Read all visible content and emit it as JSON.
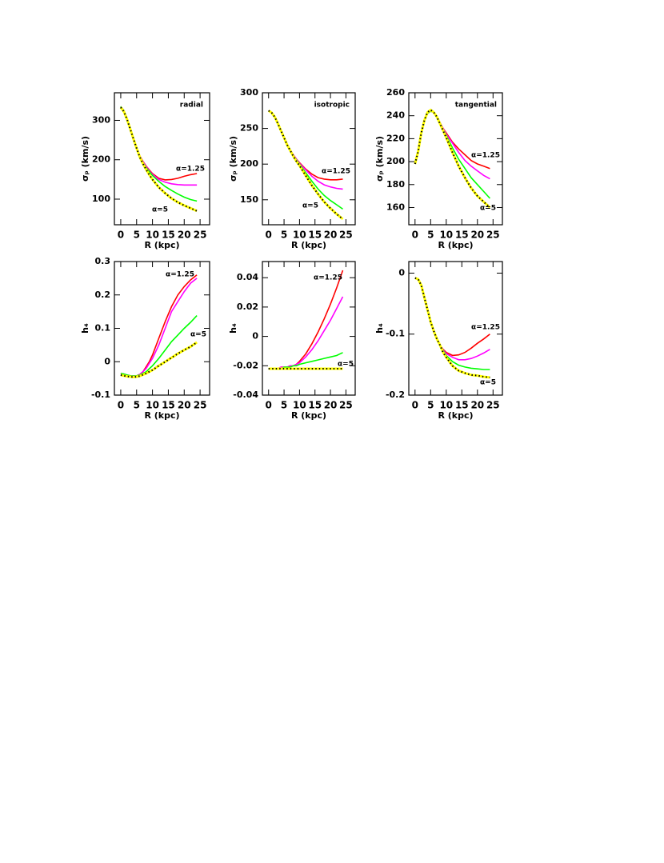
{
  "chart_data": [
    {
      "type": "line",
      "xlabel": "R (kpc)",
      "ylabel": "σₚ (km/s)",
      "annotations": [
        "radial",
        "α=1.25",
        "α=5"
      ],
      "x": [
        0,
        1,
        2,
        3,
        4,
        5,
        6,
        7,
        8,
        9,
        10,
        12,
        14,
        16,
        18,
        20,
        22,
        24
      ],
      "xlim": [
        -2,
        28
      ],
      "xticks": [
        0,
        5,
        10,
        15,
        20,
        25
      ],
      "ylim": [
        35,
        370
      ],
      "yticks": [
        100,
        200,
        300
      ],
      "series": [
        {
          "color": "#ff0000",
          "values": [
            335,
            325,
            305,
            280,
            255,
            230,
            210,
            196,
            184,
            174,
            165,
            153,
            149,
            150,
            153,
            158,
            162,
            165
          ]
        },
        {
          "color": "#ff00ff",
          "values": [
            335,
            325,
            305,
            280,
            255,
            230,
            210,
            195,
            183,
            172,
            163,
            150,
            143,
            139,
            137,
            136,
            136,
            136
          ]
        },
        {
          "color": "#00ff00",
          "values": [
            335,
            325,
            305,
            280,
            255,
            230,
            209,
            193,
            180,
            170,
            160,
            145,
            132,
            122,
            113,
            105,
            99,
            95
          ]
        },
        {
          "color": "#ffff00",
          "dot_color": "#000000",
          "values": [
            333,
            322,
            302,
            278,
            253,
            229,
            207,
            190,
            175,
            162,
            150,
            130,
            115,
            102,
            92,
            84,
            77,
            70
          ]
        }
      ]
    },
    {
      "type": "line",
      "xlabel": "R (kpc)",
      "ylabel": "σₚ (km/s)",
      "annotations": [
        "isotropic",
        "α=1.25",
        "α=5"
      ],
      "x": [
        0,
        1,
        2,
        3,
        4,
        5,
        6,
        7,
        8,
        9,
        10,
        12,
        14,
        16,
        18,
        20,
        22,
        24
      ],
      "xlim": [
        -2,
        28
      ],
      "xticks": [
        0,
        5,
        10,
        15,
        20,
        25
      ],
      "ylim": [
        115,
        300
      ],
      "yticks": [
        150,
        200,
        250,
        300
      ],
      "series": [
        {
          "color": "#ff0000",
          "values": [
            275,
            272,
            266,
            257,
            247,
            237,
            228,
            220,
            213,
            207,
            202,
            193,
            186,
            181,
            179,
            178,
            178,
            179
          ]
        },
        {
          "color": "#ff00ff",
          "values": [
            275,
            272,
            266,
            257,
            247,
            237,
            228,
            220,
            213,
            207,
            201,
            192,
            183,
            176,
            171,
            168,
            166,
            165
          ]
        },
        {
          "color": "#00ff00",
          "values": [
            275,
            272,
            266,
            257,
            247,
            237,
            228,
            220,
            212,
            206,
            200,
            188,
            176,
            165,
            156,
            149,
            143,
            137
          ]
        },
        {
          "color": "#ffff00",
          "dot_color": "#000000",
          "values": [
            275,
            272,
            266,
            257,
            247,
            237,
            227,
            219,
            211,
            204,
            198,
            184,
            170,
            158,
            147,
            138,
            130,
            123
          ]
        }
      ]
    },
    {
      "type": "line",
      "xlabel": "R (kpc)",
      "ylabel": "σₚ (km/s)",
      "annotations": [
        "tangential",
        "α=1.25",
        "α=5"
      ],
      "x": [
        0,
        1,
        2,
        3,
        4,
        5,
        6,
        7,
        8,
        9,
        10,
        12,
        14,
        16,
        18,
        20,
        22,
        24
      ],
      "xlim": [
        -2,
        28
      ],
      "xticks": [
        0,
        5,
        10,
        15,
        20,
        25
      ],
      "ylim": [
        145,
        260
      ],
      "yticks": [
        160,
        180,
        200,
        220,
        240,
        260
      ],
      "series": [
        {
          "color": "#ff0000",
          "values": [
            200,
            210,
            225,
            236,
            242,
            244,
            243,
            239,
            234,
            229,
            225,
            217,
            211,
            206,
            201,
            198,
            196,
            194
          ]
        },
        {
          "color": "#ff00ff",
          "values": [
            200,
            210,
            225,
            236,
            242,
            244,
            243,
            239,
            234,
            229,
            224,
            216,
            208,
            201,
            196,
            192,
            188,
            185
          ]
        },
        {
          "color": "#00ff00",
          "values": [
            200,
            210,
            225,
            236,
            242,
            244,
            243,
            239,
            234,
            228,
            223,
            212,
            202,
            194,
            186,
            180,
            174,
            168
          ]
        },
        {
          "color": "#ffff00",
          "dot_color": "#000000",
          "values": [
            198,
            209,
            225,
            236,
            243,
            245,
            243,
            239,
            233,
            227,
            221,
            208,
            196,
            186,
            177,
            170,
            165,
            160
          ]
        }
      ]
    },
    {
      "type": "line",
      "xlabel": "R (kpc)",
      "ylabel": "h₄",
      "annotations": [
        "α=1.25",
        "α=5"
      ],
      "x": [
        0,
        1,
        2,
        3,
        4,
        5,
        6,
        7,
        8,
        9,
        10,
        12,
        14,
        16,
        18,
        20,
        22,
        24
      ],
      "xlim": [
        -2,
        28
      ],
      "xticks": [
        0,
        5,
        10,
        15,
        20,
        25
      ],
      "ylim": [
        -0.1,
        0.3
      ],
      "yticks": [
        -0.1,
        0,
        0.1,
        0.2,
        0.3
      ],
      "series": [
        {
          "color": "#ff0000",
          "values": [
            -0.035,
            -0.037,
            -0.04,
            -0.042,
            -0.043,
            -0.042,
            -0.038,
            -0.03,
            -0.015,
            0,
            0.02,
            0.07,
            0.12,
            0.165,
            0.2,
            0.225,
            0.245,
            0.26
          ]
        },
        {
          "color": "#ff00ff",
          "values": [
            -0.035,
            -0.037,
            -0.04,
            -0.042,
            -0.043,
            -0.042,
            -0.038,
            -0.03,
            -0.02,
            -0.005,
            0.01,
            0.05,
            0.1,
            0.15,
            0.18,
            0.21,
            0.235,
            0.25
          ]
        },
        {
          "color": "#00ff00",
          "values": [
            -0.035,
            -0.037,
            -0.04,
            -0.042,
            -0.043,
            -0.042,
            -0.04,
            -0.035,
            -0.03,
            -0.021,
            -0.012,
            0.01,
            0.035,
            0.06,
            0.08,
            0.1,
            0.118,
            0.138
          ]
        },
        {
          "color": "#ffff00",
          "dot_color": "#000000",
          "values": [
            -0.04,
            -0.042,
            -0.044,
            -0.045,
            -0.046,
            -0.045,
            -0.043,
            -0.039,
            -0.035,
            -0.03,
            -0.025,
            -0.012,
            0,
            0.012,
            0.024,
            0.035,
            0.045,
            0.058
          ]
        }
      ]
    },
    {
      "type": "line",
      "xlabel": "R (kpc)",
      "ylabel": "h₄",
      "annotations": [
        "α=1.25",
        "α=5"
      ],
      "x": [
        0,
        1,
        2,
        3,
        4,
        5,
        6,
        7,
        8,
        9,
        10,
        12,
        14,
        16,
        18,
        20,
        22,
        24
      ],
      "xlim": [
        -2,
        28
      ],
      "xticks": [
        0,
        5,
        10,
        15,
        20,
        25
      ],
      "ylim": [
        -0.04,
        0.051
      ],
      "yticks": [
        -0.04,
        -0.02,
        0,
        0.02,
        0.04
      ],
      "series": [
        {
          "color": "#ff0000",
          "values": [
            -0.022,
            -0.022,
            -0.022,
            -0.022,
            -0.021,
            -0.021,
            -0.021,
            -0.02,
            -0.02,
            -0.019,
            -0.017,
            -0.012,
            -0.005,
            0.003,
            0.012,
            0.022,
            0.033,
            0.045
          ]
        },
        {
          "color": "#ff00ff",
          "values": [
            -0.022,
            -0.022,
            -0.022,
            -0.022,
            -0.021,
            -0.021,
            -0.021,
            -0.02,
            -0.02,
            -0.019,
            -0.018,
            -0.014,
            -0.009,
            -0.003,
            0.004,
            0.011,
            0.019,
            0.027
          ]
        },
        {
          "color": "#00ff00",
          "values": [
            -0.022,
            -0.022,
            -0.022,
            -0.022,
            -0.022,
            -0.021,
            -0.021,
            -0.021,
            -0.02,
            -0.02,
            -0.019,
            -0.018,
            -0.017,
            -0.016,
            -0.015,
            -0.014,
            -0.013,
            -0.011
          ]
        },
        {
          "color": "#ffff00",
          "dot_color": "#000000",
          "values": [
            -0.022,
            -0.022,
            -0.022,
            -0.022,
            -0.022,
            -0.022,
            -0.022,
            -0.022,
            -0.022,
            -0.022,
            -0.022,
            -0.022,
            -0.022,
            -0.022,
            -0.022,
            -0.022,
            -0.022,
            -0.022
          ]
        }
      ]
    },
    {
      "type": "line",
      "xlabel": "R (kpc)",
      "ylabel": "h₄",
      "annotations": [
        "α=1.25",
        "α=5"
      ],
      "x": [
        0,
        1,
        2,
        3,
        4,
        5,
        6,
        7,
        8,
        9,
        10,
        12,
        14,
        16,
        18,
        20,
        22,
        24
      ],
      "xlim": [
        -2,
        28
      ],
      "xticks": [
        0,
        5,
        10,
        15,
        20,
        25
      ],
      "ylim": [
        -0.2,
        0.019
      ],
      "yticks": [
        -0.2,
        -0.1,
        0
      ],
      "series": [
        {
          "color": "#ff0000",
          "values": [
            -0.008,
            -0.01,
            -0.02,
            -0.04,
            -0.06,
            -0.08,
            -0.095,
            -0.108,
            -0.118,
            -0.125,
            -0.13,
            -0.135,
            -0.134,
            -0.13,
            -0.123,
            -0.115,
            -0.108,
            -0.1
          ]
        },
        {
          "color": "#ff00ff",
          "values": [
            -0.008,
            -0.01,
            -0.02,
            -0.04,
            -0.06,
            -0.08,
            -0.095,
            -0.108,
            -0.118,
            -0.126,
            -0.132,
            -0.138,
            -0.142,
            -0.142,
            -0.14,
            -0.136,
            -0.131,
            -0.125
          ]
        },
        {
          "color": "#00ff00",
          "values": [
            -0.008,
            -0.01,
            -0.02,
            -0.04,
            -0.06,
            -0.08,
            -0.095,
            -0.108,
            -0.118,
            -0.127,
            -0.135,
            -0.145,
            -0.151,
            -0.154,
            -0.156,
            -0.157,
            -0.158,
            -0.158
          ]
        },
        {
          "color": "#ffff00",
          "dot_color": "#000000",
          "values": [
            -0.008,
            -0.01,
            -0.02,
            -0.04,
            -0.06,
            -0.08,
            -0.095,
            -0.108,
            -0.118,
            -0.13,
            -0.138,
            -0.152,
            -0.16,
            -0.164,
            -0.167,
            -0.168,
            -0.17,
            -0.171
          ]
        }
      ]
    }
  ]
}
